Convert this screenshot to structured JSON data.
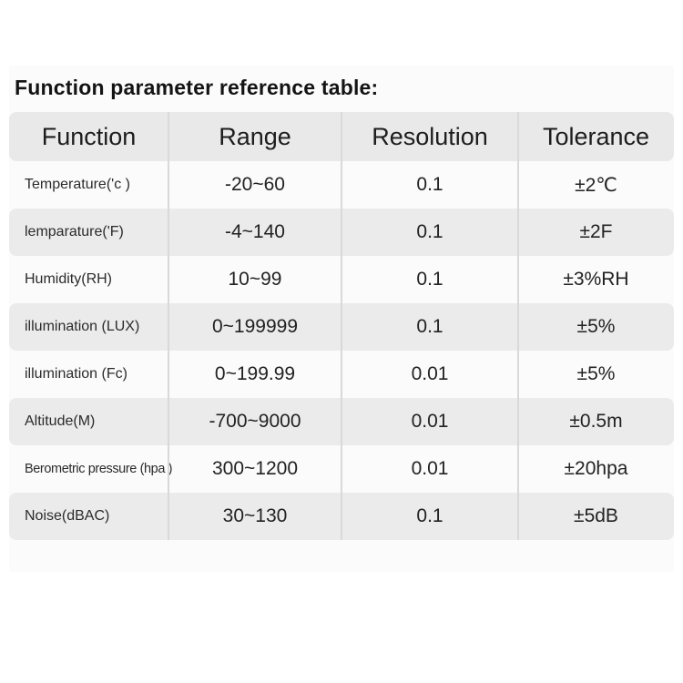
{
  "title": "Function parameter reference table:",
  "table": {
    "columns": [
      "Function",
      "Range",
      "Resolution",
      "Tolerance"
    ],
    "rows": [
      {
        "function": "Temperature('c )",
        "range": "-20~60",
        "resolution": "0.1",
        "tolerance": "±2℃"
      },
      {
        "function": "lemparature('F)",
        "range": "-4~140",
        "resolution": "0.1",
        "tolerance": "±2F"
      },
      {
        "function": "Humidity(RH)",
        "range": "10~99",
        "resolution": "0.1",
        "tolerance": "±3%RH"
      },
      {
        "function": "illumination (LUX)",
        "range": "0~199999",
        "resolution": "0.1",
        "tolerance": "±5%"
      },
      {
        "function": "illumination (Fc)",
        "range": "0~199.99",
        "resolution": "0.01",
        "tolerance": "±5%"
      },
      {
        "function": "Altitude(M)",
        "range": "-700~9000",
        "resolution": "0.01",
        "tolerance": "±0.5m"
      },
      {
        "function": "Berometric pressure (hpa )",
        "range": "300~1200",
        "resolution": "0.01",
        "tolerance": "±20hpa"
      },
      {
        "function": "Noise(dBAC)",
        "range": "30~130",
        "resolution": "0.1",
        "tolerance": "±5dB"
      }
    ]
  },
  "colors": {
    "page_bg": "#ffffff",
    "panel_bg": "#fbfbfb",
    "header_bg": "#e9e9e9",
    "alt_row_bg": "#ebebeb",
    "separator": "#d9d9d9",
    "text": "#1f1f1f"
  }
}
